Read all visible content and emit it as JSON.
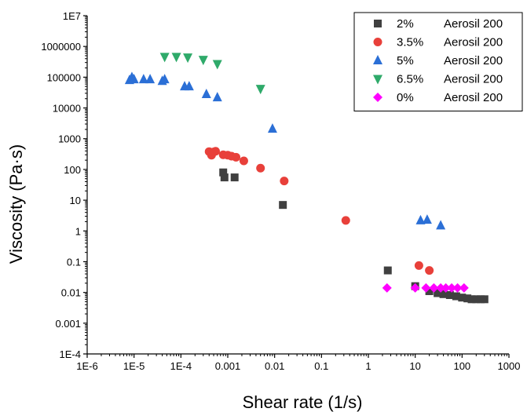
{
  "chart_data": {
    "type": "scatter",
    "title": "",
    "xlabel": "Shear rate (1/s)",
    "ylabel": "Viscosity (Pa·s)",
    "xscale": "log",
    "yscale": "log",
    "xlim": [
      1e-06,
      1000
    ],
    "ylim": [
      0.0001,
      10000000.0
    ],
    "x_tick_values": [
      1e-06,
      1e-05,
      0.0001,
      0.001,
      0.01,
      0.1,
      1,
      10,
      100,
      1000
    ],
    "x_tick_labels": [
      "1E-6",
      "1E-5",
      "1E-4",
      "0.001",
      "0.01",
      "0.1",
      "1",
      "10",
      "100",
      "1000"
    ],
    "y_tick_values": [
      0.0001,
      0.001,
      0.01,
      0.1,
      1,
      10,
      100,
      1000,
      10000,
      100000,
      1000000,
      10000000.0
    ],
    "y_tick_labels": [
      "1E-4",
      "0.001",
      "0.01",
      "0.1",
      "1",
      "10",
      "100",
      "1000",
      "10000",
      "100000",
      "1000000",
      "1E7"
    ],
    "grid": false,
    "legend_position": "top-right",
    "series": [
      {
        "name": "2%",
        "name_suffix": "Aerosil 200",
        "marker": "square",
        "color": "#404040",
        "points": [
          [
            0.0008,
            80
          ],
          [
            0.00085,
            55
          ],
          [
            0.0014,
            55
          ],
          [
            0.015,
            7
          ],
          [
            2.6,
            0.052
          ],
          [
            10,
            0.016
          ],
          [
            20,
            0.011
          ],
          [
            30,
            0.0095
          ],
          [
            40,
            0.0088
          ],
          [
            55,
            0.0082
          ],
          [
            75,
            0.0075
          ],
          [
            100,
            0.0068
          ],
          [
            130,
            0.0064
          ],
          [
            160,
            0.006
          ],
          [
            200,
            0.006
          ],
          [
            250,
            0.006
          ],
          [
            300,
            0.006
          ]
        ]
      },
      {
        "name": "3.5%",
        "name_suffix": "Aerosil 200",
        "marker": "circle",
        "color": "#e8403a",
        "points": [
          [
            0.0004,
            380
          ],
          [
            0.00045,
            290
          ],
          [
            0.0005,
            370
          ],
          [
            0.00055,
            390
          ],
          [
            0.0008,
            300
          ],
          [
            0.001,
            290
          ],
          [
            0.0012,
            270
          ],
          [
            0.0015,
            250
          ],
          [
            0.0022,
            190
          ],
          [
            0.005,
            110
          ],
          [
            0.016,
            42
          ],
          [
            0.33,
            2.2
          ],
          [
            12,
            0.075
          ],
          [
            20,
            0.052
          ]
        ]
      },
      {
        "name": "5%",
        "name_suffix": "Aerosil 200",
        "marker": "triangle-up",
        "color": "#2b6fd6",
        "points": [
          [
            8e-06,
            80000
          ],
          [
            9e-06,
            100000
          ],
          [
            1e-05,
            85000
          ],
          [
            1.6e-05,
            85000
          ],
          [
            2.2e-05,
            85000
          ],
          [
            4e-05,
            75000
          ],
          [
            4.5e-05,
            85000
          ],
          [
            0.00012,
            50000
          ],
          [
            0.00015,
            50000
          ],
          [
            0.00035,
            28000
          ],
          [
            0.0006,
            22000
          ],
          [
            0.009,
            2100
          ],
          [
            13,
            2.2
          ],
          [
            18,
            2.3
          ],
          [
            35,
            1.5
          ]
        ]
      },
      {
        "name": "6.5%",
        "name_suffix": "Aerosil 200",
        "marker": "triangle-down",
        "color": "#2faa6a",
        "points": [
          [
            4.5e-05,
            460000
          ],
          [
            8e-05,
            460000
          ],
          [
            0.00014,
            440000
          ],
          [
            0.0003,
            370000
          ],
          [
            0.0006,
            270000
          ],
          [
            0.005,
            42000
          ]
        ]
      },
      {
        "name": "0%",
        "name_suffix": "Aerosil 200",
        "marker": "diamond",
        "color": "#ff00ff",
        "points": [
          [
            2.5,
            0.014
          ],
          [
            10,
            0.014
          ],
          [
            17,
            0.014
          ],
          [
            25,
            0.014
          ],
          [
            35,
            0.014
          ],
          [
            45,
            0.014
          ],
          [
            60,
            0.014
          ],
          [
            80,
            0.014
          ],
          [
            110,
            0.014
          ]
        ]
      }
    ]
  }
}
